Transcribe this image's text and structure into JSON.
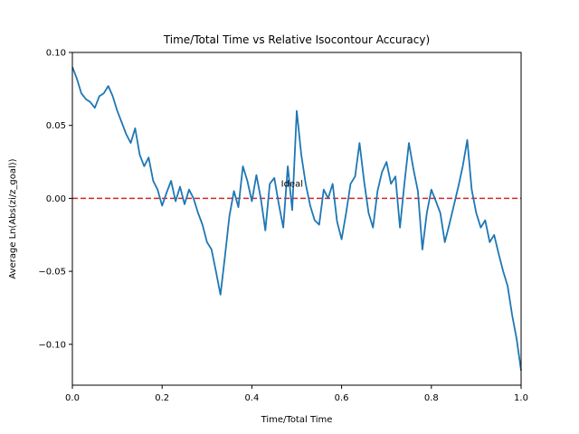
{
  "chart_data": {
    "type": "line",
    "title": "Time/Total Time vs Relative Isocontour Accuracy)",
    "xlabel": "Time/Total Time",
    "ylabel": "Average Ln(Abs(zi/z_goal))",
    "xlim": [
      0.0,
      1.0
    ],
    "ylim": [
      -0.128,
      0.1
    ],
    "x_ticks": [
      0.0,
      0.2,
      0.4,
      0.6,
      0.8,
      1.0
    ],
    "x_tick_labels": [
      "0.0",
      "0.2",
      "0.4",
      "0.6",
      "0.8",
      "1.0"
    ],
    "y_ticks": [
      0.1,
      0.05,
      0.0,
      -0.05,
      -0.1
    ],
    "y_tick_labels": [
      "0.10",
      "0.05",
      "0.00",
      "−0.05",
      "−0.10"
    ],
    "grid": false,
    "legend": "none",
    "series": [
      {
        "color": "#1f77b4",
        "x": [
          0.0,
          0.01,
          0.02,
          0.03,
          0.04,
          0.05,
          0.06,
          0.07,
          0.08,
          0.09,
          0.1,
          0.11,
          0.12,
          0.13,
          0.14,
          0.15,
          0.16,
          0.17,
          0.18,
          0.19,
          0.2,
          0.21,
          0.22,
          0.23,
          0.24,
          0.25,
          0.26,
          0.27,
          0.28,
          0.29,
          0.3,
          0.31,
          0.32,
          0.33,
          0.34,
          0.35,
          0.36,
          0.37,
          0.38,
          0.39,
          0.4,
          0.41,
          0.42,
          0.43,
          0.44,
          0.45,
          0.46,
          0.47,
          0.48,
          0.49,
          0.5,
          0.51,
          0.52,
          0.53,
          0.54,
          0.55,
          0.56,
          0.57,
          0.58,
          0.59,
          0.6,
          0.61,
          0.62,
          0.63,
          0.64,
          0.65,
          0.66,
          0.67,
          0.68,
          0.69,
          0.7,
          0.71,
          0.72,
          0.73,
          0.74,
          0.75,
          0.76,
          0.77,
          0.78,
          0.79,
          0.8,
          0.81,
          0.82,
          0.83,
          0.84,
          0.85,
          0.86,
          0.87,
          0.88,
          0.89,
          0.9,
          0.91,
          0.92,
          0.93,
          0.94,
          0.95,
          0.96,
          0.97,
          0.98,
          0.99,
          1.0
        ],
        "y": [
          0.09,
          0.082,
          0.072,
          0.068,
          0.066,
          0.062,
          0.07,
          0.072,
          0.077,
          0.07,
          0.06,
          0.052,
          0.044,
          0.038,
          0.048,
          0.03,
          0.022,
          0.028,
          0.012,
          0.006,
          -0.005,
          0.004,
          0.012,
          -0.002,
          0.008,
          -0.004,
          0.006,
          0.0,
          -0.01,
          -0.018,
          -0.03,
          -0.035,
          -0.05,
          -0.066,
          -0.04,
          -0.012,
          0.005,
          -0.006,
          0.022,
          0.012,
          -0.002,
          0.016,
          0.0,
          -0.022,
          0.01,
          0.014,
          -0.004,
          -0.02,
          0.022,
          -0.008,
          0.06,
          0.03,
          0.01,
          -0.005,
          -0.015,
          -0.018,
          0.006,
          0.0,
          0.01,
          -0.016,
          -0.028,
          -0.01,
          0.01,
          0.015,
          0.038,
          0.012,
          -0.01,
          -0.02,
          0.005,
          0.018,
          0.025,
          0.01,
          0.015,
          -0.02,
          0.01,
          0.038,
          0.02,
          0.005,
          -0.035,
          -0.01,
          0.006,
          -0.002,
          -0.01,
          -0.03,
          -0.018,
          -0.005,
          0.008,
          0.022,
          0.04,
          0.006,
          -0.01,
          -0.02,
          -0.015,
          -0.03,
          -0.025,
          -0.038,
          -0.05,
          -0.06,
          -0.08,
          -0.096,
          -0.118
        ]
      }
    ],
    "reference_line": {
      "y": 0.0,
      "style": "dashed",
      "color": "#d62728"
    },
    "annotations": [
      {
        "text": "Ideal",
        "x": 0.465,
        "y": 0.008,
        "color": "#d62728"
      }
    ]
  }
}
